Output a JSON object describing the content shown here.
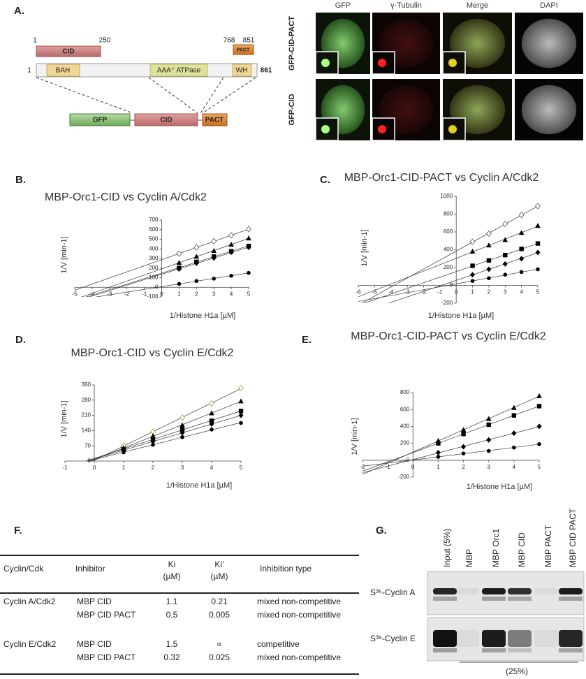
{
  "panel_a": {
    "label": "A.",
    "cid_start": "1",
    "cid_end": "250",
    "cid": "CID",
    "pact_start": "768",
    "pact_end": "851",
    "pact": "PACT",
    "orc1_start": "1",
    "bah": "BAH",
    "atpase": "AAA⁺ ATPase",
    "wh": "WH",
    "orc1_end": "861",
    "fusion": [
      "GFP",
      "CID",
      "PACT"
    ],
    "image_columns": [
      "GFP",
      "γ-Tubulin",
      "Merge",
      "DAPI"
    ],
    "image_rows": [
      "GFP-CID-PACT",
      "GFP-CID"
    ]
  },
  "chart_data": [
    {
      "type": "scatter",
      "panel": "B.",
      "title": "MBP-Orc1-CID vs Cyclin A/Cdk2",
      "x_label": "1/Histone H1a [µM]",
      "y_label": "1/V [min-1]",
      "xlim": [
        -5,
        5
      ],
      "xticks": [
        -5,
        -4,
        -3,
        -2,
        -1,
        0,
        1,
        2,
        3,
        4,
        5
      ],
      "ylim": [
        -100,
        700
      ],
      "yticks": [
        -100,
        0,
        100,
        200,
        300,
        400,
        500,
        600,
        700
      ],
      "x": [
        1,
        2,
        3,
        4,
        5
      ],
      "fit_lines": true,
      "series": [
        {
          "marker": "diamond-open",
          "color": "#555555",
          "values": [
            350,
            415,
            480,
            540,
            605
          ]
        },
        {
          "marker": "triangle",
          "color": "#000000",
          "values": [
            255,
            320,
            380,
            445,
            510
          ]
        },
        {
          "marker": "square",
          "color": "#000000",
          "values": [
            200,
            265,
            320,
            375,
            430
          ]
        },
        {
          "marker": "diamond",
          "color": "#000000",
          "values": [
            190,
            250,
            305,
            365,
            415
          ]
        },
        {
          "marker": "circle",
          "color": "#000000",
          "values": [
            35,
            65,
            90,
            120,
            150
          ]
        }
      ]
    },
    {
      "type": "scatter",
      "panel": "C.",
      "title": "MBP-Orc1-CID-PACT vs Cyclin A/Cdk2",
      "x_label": "1/Histone H1a [µM]",
      "y_label": "1/V [min-1]",
      "xlim": [
        -6,
        5
      ],
      "xticks": [
        -6,
        -5,
        -4,
        -3,
        -2,
        -1,
        0,
        1,
        2,
        3,
        4,
        5
      ],
      "ylim": [
        -200,
        1000
      ],
      "yticks": [
        -200,
        0,
        200,
        400,
        600,
        800,
        1000
      ],
      "x": [
        1,
        2,
        3,
        4,
        5
      ],
      "fit_lines": true,
      "series": [
        {
          "marker": "diamond-open",
          "color": "#555555",
          "values": [
            490,
            580,
            690,
            790,
            890
          ]
        },
        {
          "marker": "triangle",
          "color": "#000000",
          "values": [
            380,
            450,
            510,
            590,
            670
          ]
        },
        {
          "marker": "square",
          "color": "#000000",
          "values": [
            220,
            280,
            340,
            410,
            470
          ]
        },
        {
          "marker": "diamond",
          "color": "#000000",
          "values": [
            120,
            180,
            240,
            300,
            370
          ]
        },
        {
          "marker": "circle",
          "color": "#000000",
          "values": [
            50,
            80,
            120,
            150,
            180
          ]
        }
      ]
    },
    {
      "type": "scatter",
      "panel": "D.",
      "title": "MBP-Orc1-CID vs Cyclin E/Cdk2",
      "x_label": "1/Histone H1a [µM]",
      "y_label": "1/V [min-1]",
      "xlim": [
        -1,
        5
      ],
      "xticks": [
        -1,
        0,
        1,
        2,
        3,
        4,
        5
      ],
      "ylim": [
        0,
        350
      ],
      "yticks": [
        0,
        70,
        140,
        210,
        280,
        350
      ],
      "x": [
        1,
        2,
        3,
        4,
        5
      ],
      "fit_lines": true,
      "series": [
        {
          "marker": "diamond-open",
          "color": "#999933",
          "values": [
            70,
            135,
            200,
            265,
            335
          ]
        },
        {
          "marker": "triangle",
          "color": "#000000",
          "values": [
            60,
            115,
            165,
            220,
            275
          ]
        },
        {
          "marker": "square",
          "color": "#000000",
          "values": [
            55,
            100,
            145,
            185,
            230
          ]
        },
        {
          "marker": "diamond",
          "color": "#000000",
          "values": [
            50,
            90,
            130,
            170,
            210
          ]
        },
        {
          "marker": "circle",
          "color": "#000000",
          "values": [
            40,
            75,
            110,
            145,
            175
          ]
        }
      ]
    },
    {
      "type": "scatter",
      "panel": "E.",
      "title": "MBP-Orc1-CID-PACT vs Cyclin E/Cdk2",
      "x_label": "1/Histone H1a [µM]",
      "y_label": "1/V [min-1]",
      "xlim": [
        -2,
        5
      ],
      "xticks": [
        -2,
        -1,
        0,
        1,
        2,
        3,
        4,
        5
      ],
      "ylim": [
        -200,
        800
      ],
      "yticks": [
        -200,
        0,
        200,
        400,
        600,
        800
      ],
      "x": [
        1,
        2,
        3,
        4,
        5
      ],
      "fit_lines": true,
      "series": [
        {
          "marker": "triangle",
          "color": "#000000",
          "values": [
            230,
            360,
            490,
            620,
            760
          ]
        },
        {
          "marker": "square",
          "color": "#000000",
          "values": [
            200,
            310,
            420,
            530,
            640
          ]
        },
        {
          "marker": "diamond",
          "color": "#000000",
          "values": [
            90,
            160,
            240,
            320,
            400
          ]
        },
        {
          "marker": "circle",
          "color": "#000000",
          "values": [
            40,
            80,
            110,
            150,
            190
          ]
        }
      ]
    }
  ],
  "panel_f": {
    "label": "F.",
    "header": [
      "Cyclin/Cdk",
      "Inhibitor",
      "Ki",
      "Ki’",
      "Inhibition type"
    ],
    "ki_unit": "(µM)",
    "ki2_unit": "(µM)",
    "groups": [
      {
        "cyclin": "Cyclin A/Cdk2",
        "rows": [
          [
            "MBP CID",
            "1.1",
            "0.21",
            "mixed non-competitive"
          ],
          [
            "MBP CID PACT",
            "0.5",
            "0.005",
            "mixed non-competitive"
          ]
        ]
      },
      {
        "cyclin": "Cyclin E/Cdk2",
        "rows": [
          [
            "MBP CID",
            "1.5",
            "∝",
            "competitive"
          ],
          [
            "MBP CID PACT",
            "0.32",
            "0.025",
            "mixed  non-competitive"
          ]
        ]
      }
    ]
  },
  "panel_g": {
    "label": "G.",
    "lanes": [
      "Input (5%)",
      "MBP",
      "MBP Orc1",
      "MBP CID",
      "MBP PACT",
      "MBP CID PACT"
    ],
    "rows": [
      "S³⁵-Cyclin A",
      "S³⁵-Cyclin E"
    ],
    "footer": "(25%)"
  }
}
